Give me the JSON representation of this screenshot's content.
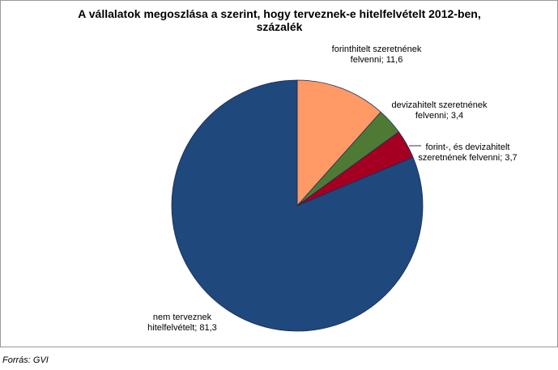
{
  "chart_data": {
    "type": "pie",
    "title": "A vállalatok megoszlása a szerint, hogy terveznek-e hitelfelvételt 2012-ben, százalék",
    "categories": [
      "forinthitelt szeretnének felvenni;",
      "devizahitelt szeretnének felvenni;",
      "forint-, és devizahitelt szeretnének felvenni;",
      "nem terveznek hitelfelvételt;"
    ],
    "values": [
      11.6,
      3.4,
      3.7,
      81.3
    ],
    "value_labels": [
      "11,6",
      "3,4",
      "3,7",
      "81,3"
    ],
    "colors": [
      "#FF9966",
      "#4F7A35",
      "#A50021",
      "#1F487C"
    ],
    "source": "Forrás: GVI"
  }
}
